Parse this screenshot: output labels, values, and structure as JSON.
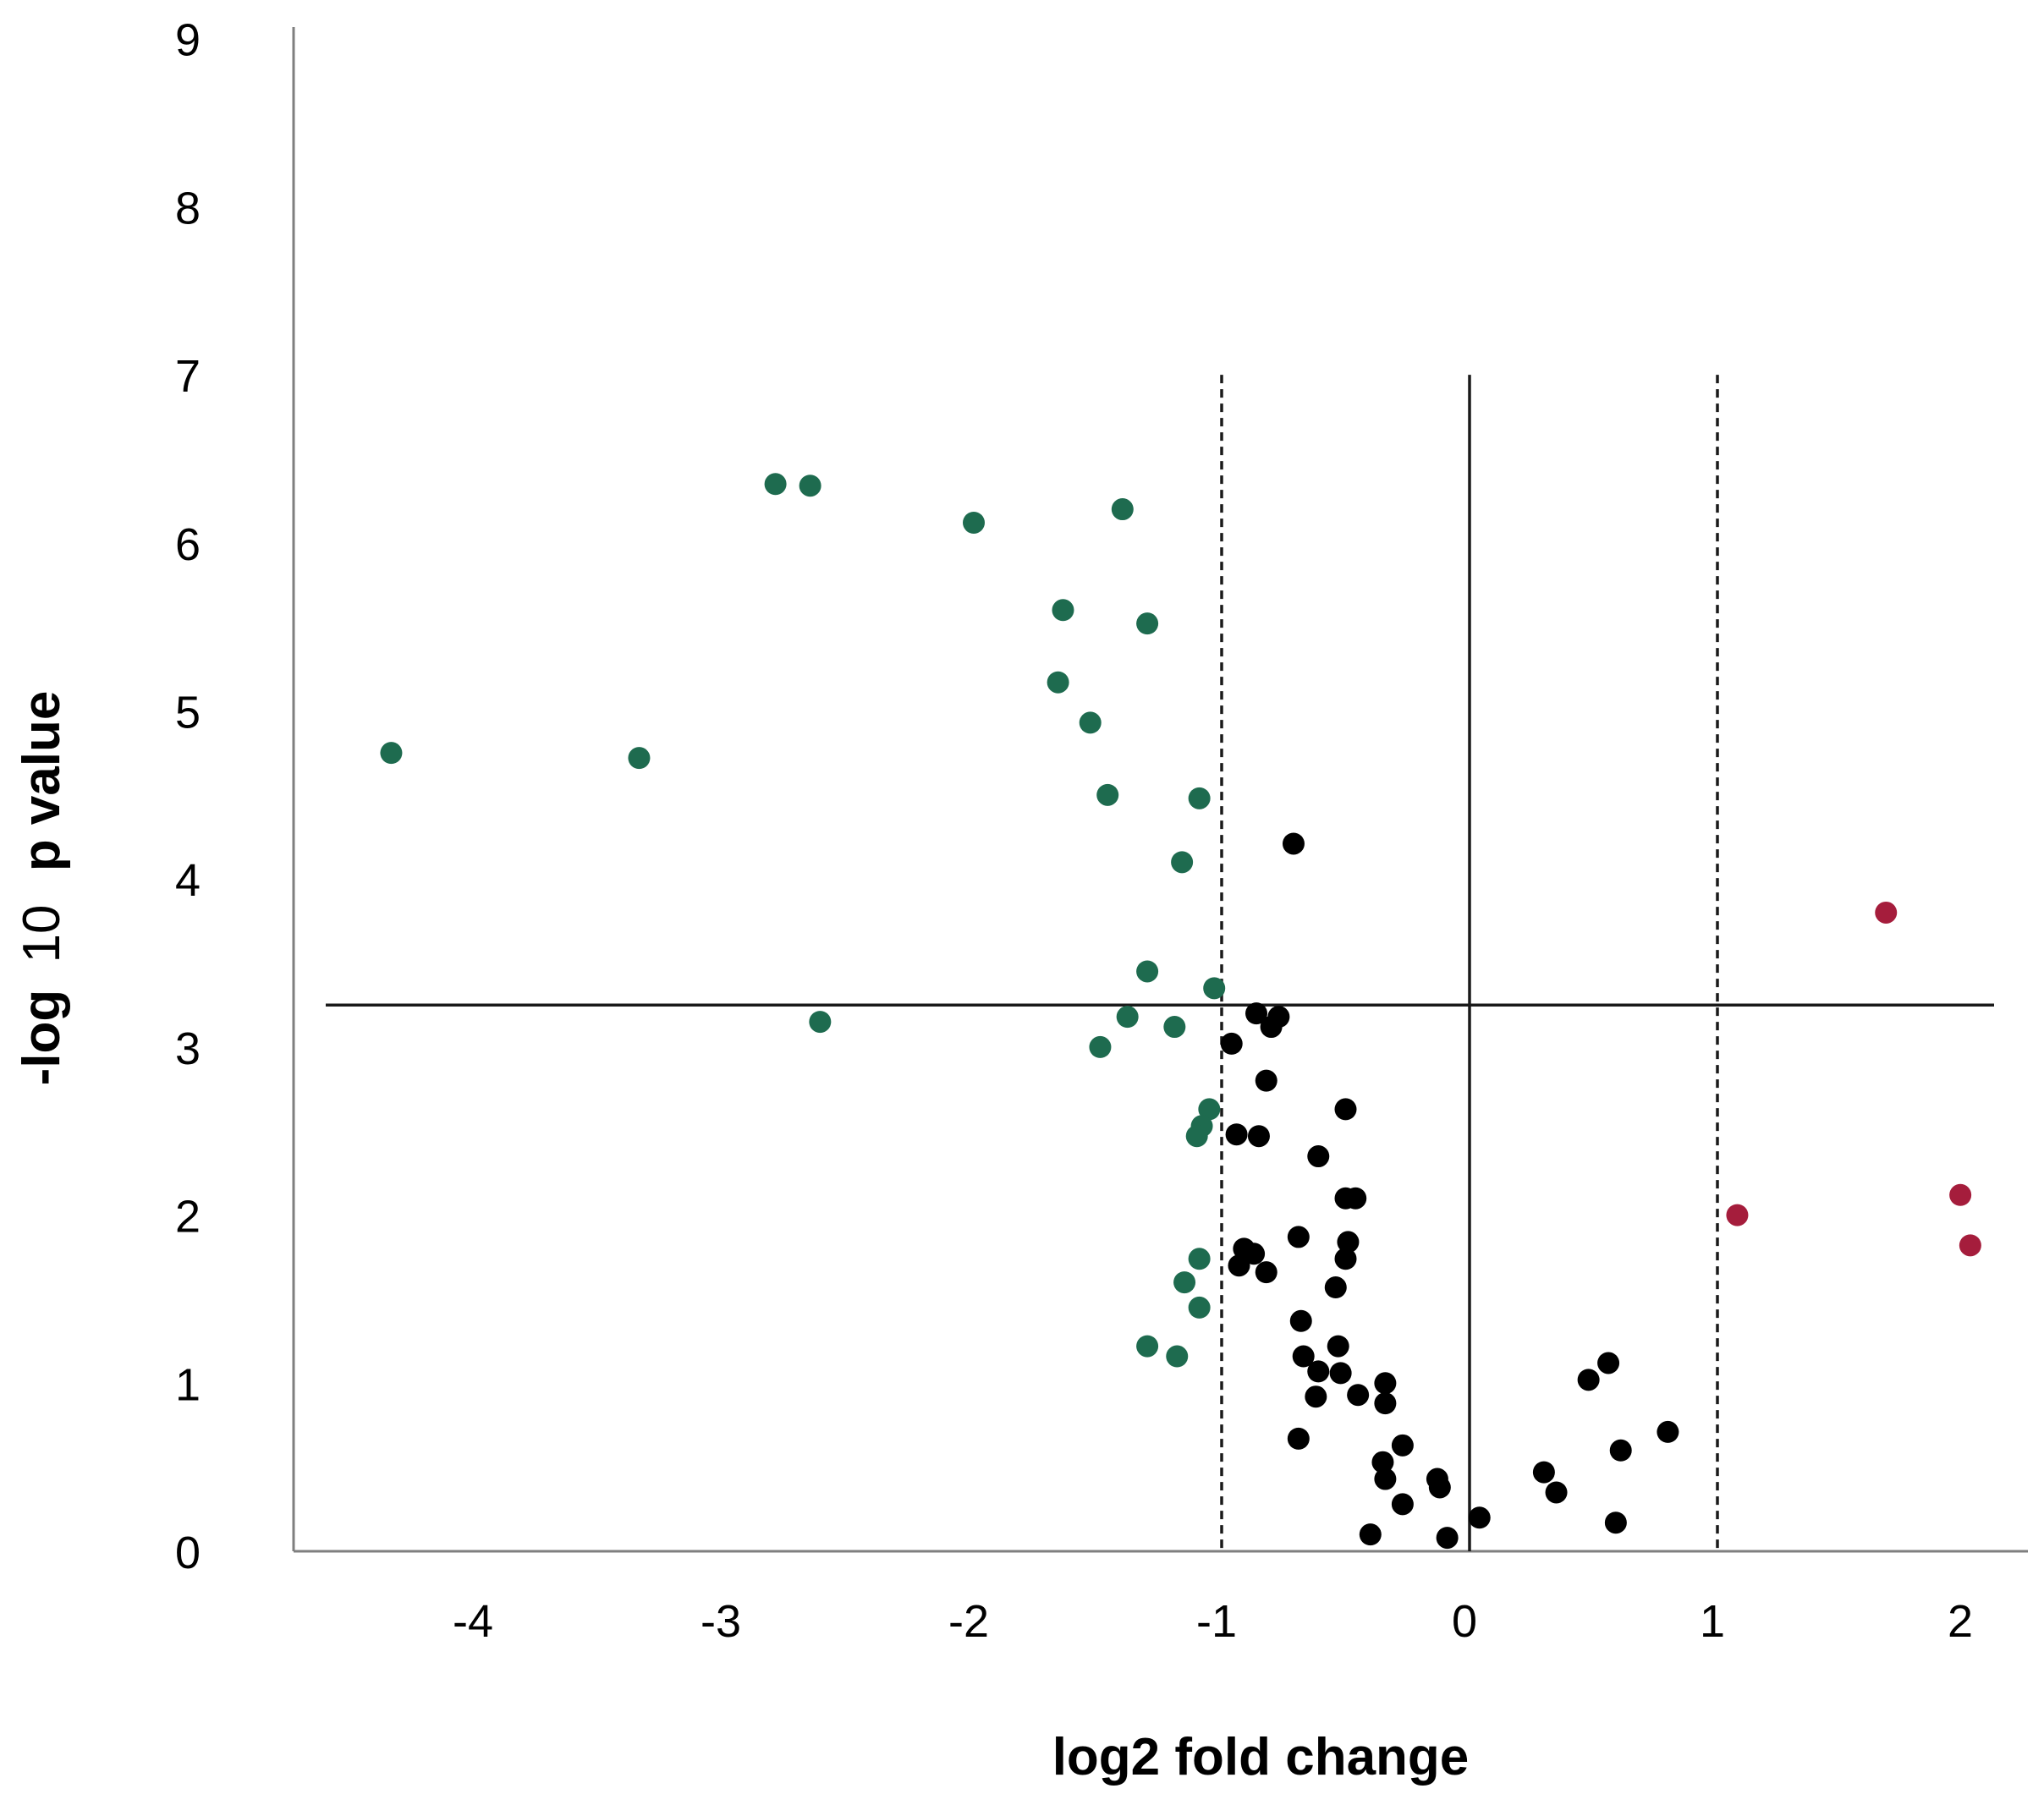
{
  "chart_data": {
    "type": "scatter",
    "xlabel": "log2 fold change",
    "ylabel": {
      "prefix": "-log",
      "base": "10",
      "suffix": "p value"
    },
    "xlim": [
      -4.5,
      2.2
    ],
    "ylim": [
      0,
      9
    ],
    "x_ticks": [
      -4,
      -3,
      -2,
      -1,
      0,
      1,
      2
    ],
    "y_ticks": [
      0,
      1,
      2,
      3,
      4,
      5,
      6,
      7,
      8,
      9
    ],
    "grid": false,
    "legend": "none",
    "reference_lines": {
      "horizontal_threshold_y": 3.25,
      "vertical_center_x": 0,
      "vertical_dashed_x": [
        -1,
        1
      ],
      "vertical_lines_ymax": 7
    },
    "colors": {
      "down": "#1e6b4f",
      "ns": "#000000",
      "up": "#a51d3c",
      "axis": "#7f7f7f",
      "reference": "#1a1a1a"
    },
    "series": [
      {
        "group": "down",
        "points": [
          [
            -4.35,
            4.75
          ],
          [
            -3.35,
            4.72
          ],
          [
            -2.8,
            6.35
          ],
          [
            -2.66,
            6.34
          ],
          [
            -2.62,
            3.15
          ],
          [
            -2.0,
            6.12
          ],
          [
            -1.64,
            5.6
          ],
          [
            -1.4,
            6.2
          ],
          [
            -1.3,
            5.52
          ],
          [
            -1.66,
            5.17
          ],
          [
            -1.53,
            4.93
          ],
          [
            -1.46,
            4.5
          ],
          [
            -1.09,
            4.48
          ],
          [
            -1.16,
            4.1
          ],
          [
            -1.3,
            3.45
          ],
          [
            -1.03,
            3.35
          ],
          [
            -1.38,
            3.18
          ],
          [
            -1.19,
            3.12
          ],
          [
            -1.49,
            3.0
          ],
          [
            -1.05,
            2.63
          ],
          [
            -1.08,
            2.53
          ],
          [
            -1.1,
            2.47
          ],
          [
            -1.09,
            1.74
          ],
          [
            -1.15,
            1.6
          ],
          [
            -1.09,
            1.45
          ],
          [
            -1.3,
            1.22
          ],
          [
            -1.18,
            1.16
          ]
        ]
      },
      {
        "group": "ns",
        "points": [
          [
            -0.71,
            4.21
          ],
          [
            -0.86,
            3.2
          ],
          [
            -0.77,
            3.18
          ],
          [
            -0.8,
            3.12
          ],
          [
            -0.96,
            3.02
          ],
          [
            -0.82,
            2.8
          ],
          [
            -0.5,
            2.63
          ],
          [
            -0.94,
            2.48
          ],
          [
            -0.85,
            2.47
          ],
          [
            -0.61,
            2.35
          ],
          [
            -0.5,
            2.1
          ],
          [
            -0.46,
            2.1
          ],
          [
            -0.69,
            1.87
          ],
          [
            -0.49,
            1.84
          ],
          [
            -0.91,
            1.8
          ],
          [
            -0.87,
            1.77
          ],
          [
            -0.93,
            1.7
          ],
          [
            -0.5,
            1.74
          ],
          [
            -0.82,
            1.66
          ],
          [
            -0.54,
            1.57
          ],
          [
            -0.68,
            1.37
          ],
          [
            -0.53,
            1.22
          ],
          [
            -0.67,
            1.16
          ],
          [
            -0.61,
            1.07
          ],
          [
            -0.52,
            1.06
          ],
          [
            -0.34,
            1.0
          ],
          [
            -0.45,
            0.93
          ],
          [
            -0.62,
            0.92
          ],
          [
            -0.34,
            0.88
          ],
          [
            -0.69,
            0.67
          ],
          [
            -0.27,
            0.63
          ],
          [
            -0.35,
            0.53
          ],
          [
            -0.34,
            0.43
          ],
          [
            -0.13,
            0.43
          ],
          [
            -0.12,
            0.38
          ],
          [
            -0.27,
            0.28
          ],
          [
            -0.4,
            0.1
          ],
          [
            -0.09,
            0.08
          ],
          [
            0.04,
            0.2
          ],
          [
            0.3,
            0.47
          ],
          [
            0.35,
            0.35
          ],
          [
            0.48,
            1.02
          ],
          [
            0.56,
            1.12
          ],
          [
            0.61,
            0.6
          ],
          [
            0.8,
            0.71
          ],
          [
            0.59,
            0.17
          ]
        ]
      },
      {
        "group": "up",
        "points": [
          [
            1.68,
            3.8
          ],
          [
            1.08,
            2.0
          ],
          [
            1.98,
            2.12
          ],
          [
            2.02,
            1.82
          ]
        ]
      }
    ]
  }
}
